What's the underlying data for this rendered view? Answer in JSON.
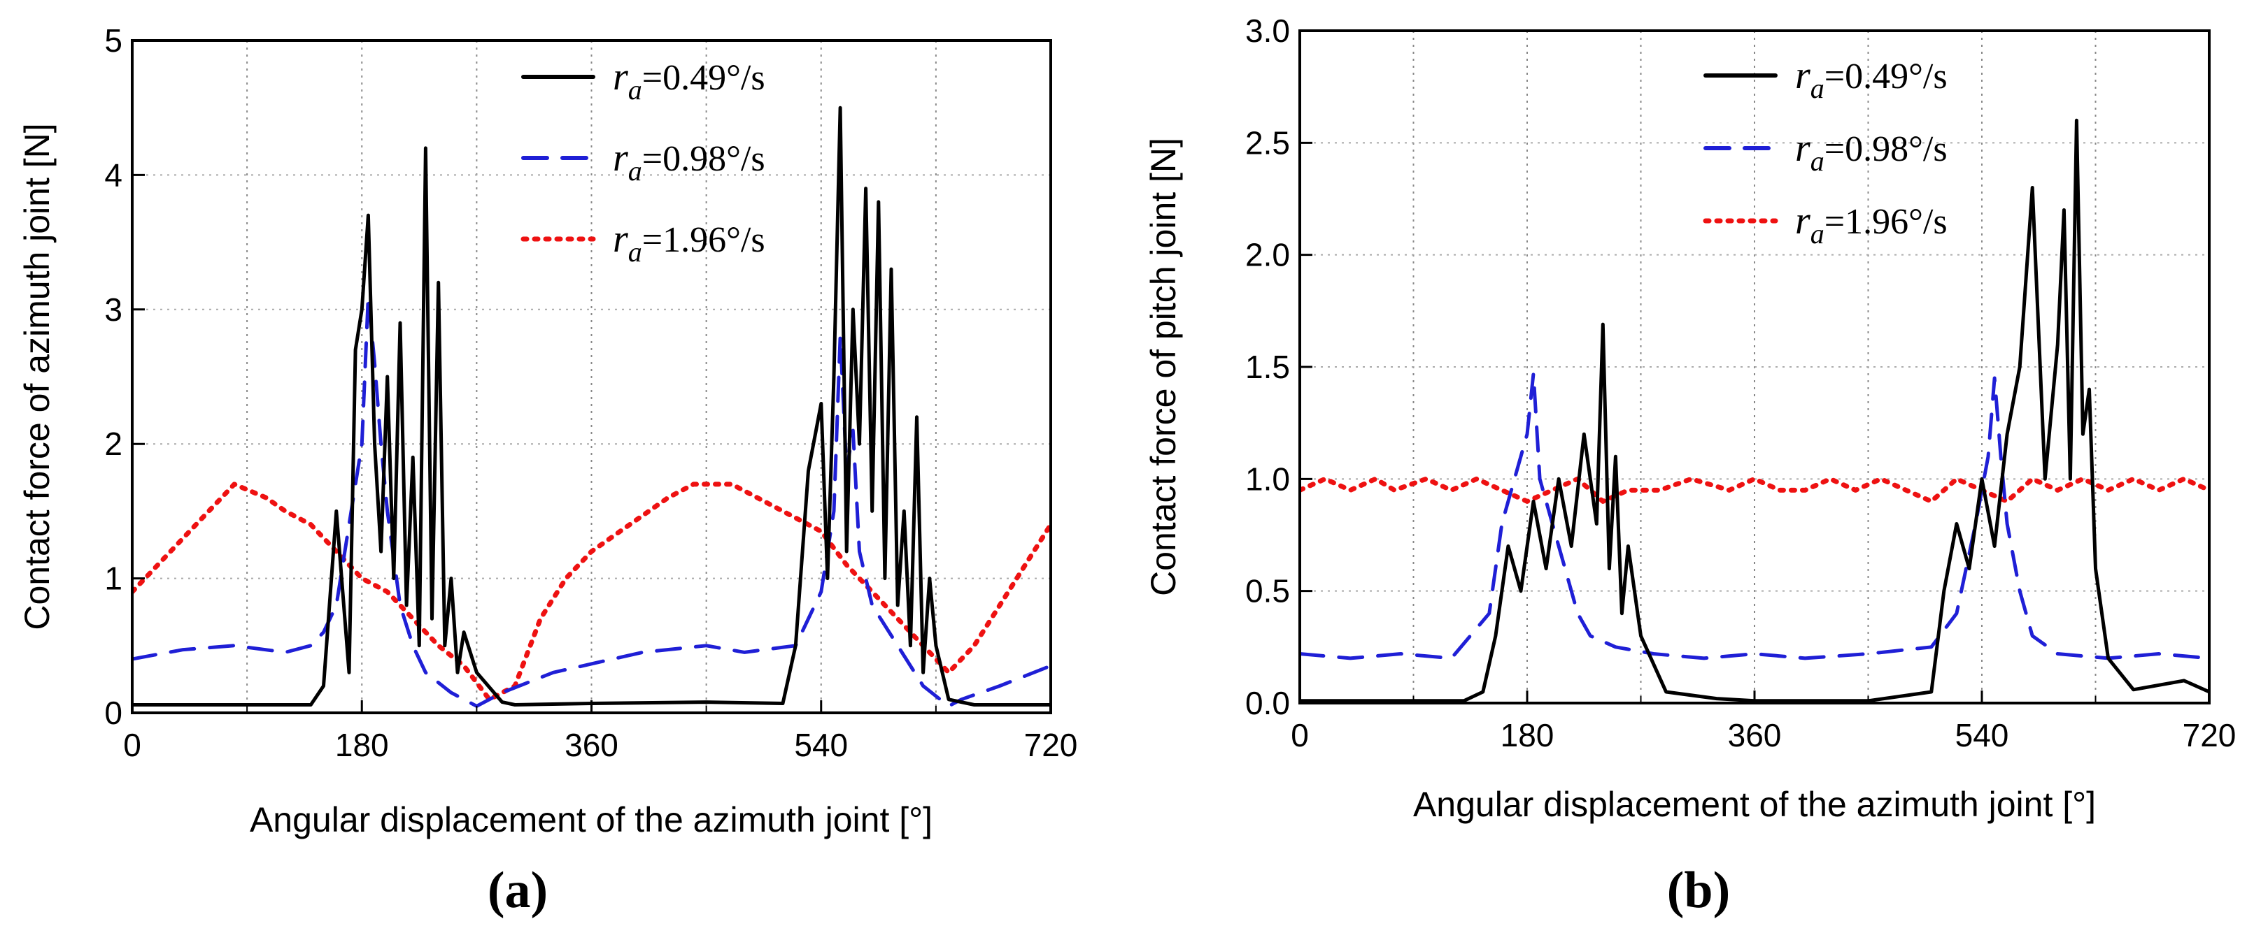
{
  "chart_data": [
    {
      "type": "line",
      "panel_label": "(a)",
      "xlabel": "Angular displacement of the azimuth joint [°]",
      "ylabel": "Contact force of azimuth joint [N]",
      "xlim": [
        0,
        720
      ],
      "ylim": [
        0,
        5
      ],
      "xticks": [
        "0",
        "180",
        "360",
        "540",
        "720"
      ],
      "yticks": [
        "0",
        "1",
        "2",
        "3",
        "4",
        "5"
      ],
      "grid": "dotted",
      "legend_position": "top-right",
      "series": [
        {
          "name": "=0.49°/s",
          "name_var": "r",
          "name_sub": "a",
          "color": "#000000",
          "style": "solid",
          "x": [
            0,
            140,
            150,
            160,
            170,
            175,
            180,
            185,
            190,
            195,
            200,
            205,
            210,
            215,
            220,
            225,
            230,
            235,
            240,
            245,
            250,
            255,
            260,
            270,
            290,
            300,
            360,
            450,
            510,
            520,
            530,
            540,
            545,
            550,
            555,
            560,
            565,
            570,
            575,
            580,
            585,
            590,
            595,
            600,
            605,
            610,
            615,
            620,
            625,
            630,
            640,
            660,
            720
          ],
          "y": [
            0.06,
            0.06,
            0.2,
            1.5,
            0.3,
            2.7,
            3.0,
            3.7,
            2.0,
            1.2,
            2.5,
            1.0,
            2.9,
            0.8,
            1.9,
            0.5,
            4.2,
            0.7,
            3.2,
            0.5,
            1.0,
            0.3,
            0.6,
            0.3,
            0.08,
            0.06,
            0.07,
            0.08,
            0.07,
            0.5,
            1.8,
            2.3,
            1.0,
            2.5,
            4.5,
            1.2,
            3.0,
            2.0,
            3.9,
            1.5,
            3.8,
            1.0,
            3.3,
            0.8,
            1.5,
            0.5,
            2.2,
            0.3,
            1.0,
            0.5,
            0.1,
            0.06,
            0.06
          ]
        },
        {
          "name": "=0.98°/s",
          "name_var": "r",
          "name_sub": "a",
          "color": "#1f1fd6",
          "style": "dashed",
          "x": [
            0,
            40,
            80,
            120,
            140,
            150,
            160,
            170,
            180,
            185,
            190,
            195,
            200,
            210,
            220,
            230,
            250,
            270,
            290,
            330,
            400,
            450,
            480,
            520,
            540,
            550,
            555,
            560,
            565,
            570,
            580,
            600,
            620,
            640,
            650,
            680,
            720
          ],
          "y": [
            0.4,
            0.47,
            0.5,
            0.45,
            0.5,
            0.6,
            0.8,
            1.4,
            2.0,
            3.1,
            2.6,
            2.0,
            1.5,
            0.8,
            0.5,
            0.3,
            0.15,
            0.05,
            0.15,
            0.3,
            0.45,
            0.5,
            0.45,
            0.5,
            0.9,
            1.5,
            2.8,
            1.8,
            2.1,
            1.2,
            0.8,
            0.5,
            0.2,
            0.05,
            0.1,
            0.2,
            0.35
          ]
        },
        {
          "name": "=1.96°/s",
          "name_var": "r",
          "name_sub": "a",
          "color": "#ee1111",
          "style": "dotted",
          "x": [
            0,
            20,
            40,
            60,
            70,
            80,
            105,
            120,
            140,
            160,
            180,
            200,
            220,
            240,
            260,
            280,
            300,
            320,
            340,
            360,
            390,
            420,
            440,
            470,
            490,
            510,
            540,
            560,
            580,
            600,
            620,
            640,
            660,
            680,
            700,
            720
          ],
          "y": [
            0.9,
            1.1,
            1.3,
            1.5,
            1.6,
            1.7,
            1.6,
            1.5,
            1.4,
            1.2,
            1.0,
            0.9,
            0.7,
            0.5,
            0.35,
            0.1,
            0.2,
            0.7,
            1.0,
            1.2,
            1.4,
            1.6,
            1.7,
            1.7,
            1.6,
            1.5,
            1.35,
            1.1,
            0.9,
            0.7,
            0.5,
            0.3,
            0.5,
            0.8,
            1.1,
            1.4
          ]
        }
      ]
    },
    {
      "type": "line",
      "panel_label": "(b)",
      "xlabel": "Angular displacement of the azimuth joint [°]",
      "ylabel": "Contact force of pitch joint [N]",
      "xlim": [
        0,
        720
      ],
      "ylim": [
        0,
        3
      ],
      "xticks": [
        "0",
        "180",
        "360",
        "540",
        "720"
      ],
      "yticks": [
        "0.0",
        "0.5",
        "1.0",
        "1.5",
        "2.0",
        "2.5",
        "3.0"
      ],
      "grid": "dotted",
      "legend_position": "top-right",
      "series": [
        {
          "name": "=0.49°/s",
          "name_var": "r",
          "name_sub": "a",
          "color": "#000000",
          "style": "solid",
          "x": [
            0,
            130,
            145,
            155,
            165,
            175,
            185,
            195,
            205,
            215,
            225,
            235,
            240,
            245,
            250,
            255,
            260,
            270,
            290,
            330,
            360,
            450,
            500,
            510,
            520,
            530,
            540,
            550,
            560,
            570,
            580,
            590,
            600,
            605,
            610,
            615,
            620,
            625,
            630,
            640,
            660,
            700,
            720
          ],
          "y": [
            0.01,
            0.01,
            0.05,
            0.3,
            0.7,
            0.5,
            0.9,
            0.6,
            1.0,
            0.7,
            1.2,
            0.8,
            1.69,
            0.6,
            1.1,
            0.4,
            0.7,
            0.3,
            0.05,
            0.02,
            0.01,
            0.01,
            0.05,
            0.5,
            0.8,
            0.6,
            1.0,
            0.7,
            1.2,
            1.5,
            2.3,
            1.0,
            1.6,
            2.2,
            1.0,
            2.6,
            1.2,
            1.4,
            0.6,
            0.2,
            0.06,
            0.1,
            0.05
          ]
        },
        {
          "name": "=0.98°/s",
          "name_var": "r",
          "name_sub": "a",
          "color": "#1f1fd6",
          "style": "dashed",
          "x": [
            0,
            40,
            80,
            120,
            150,
            160,
            170,
            180,
            185,
            190,
            200,
            210,
            220,
            230,
            250,
            280,
            320,
            360,
            400,
            450,
            500,
            520,
            535,
            545,
            550,
            555,
            560,
            570,
            580,
            600,
            640,
            680,
            720
          ],
          "y": [
            0.22,
            0.2,
            0.22,
            0.2,
            0.4,
            0.8,
            1.0,
            1.2,
            1.47,
            1.0,
            0.8,
            0.6,
            0.4,
            0.3,
            0.25,
            0.22,
            0.2,
            0.22,
            0.2,
            0.22,
            0.25,
            0.4,
            0.8,
            1.1,
            1.45,
            1.1,
            0.8,
            0.5,
            0.3,
            0.22,
            0.2,
            0.22,
            0.2
          ]
        },
        {
          "name": "=1.96°/s",
          "name_var": "r",
          "name_sub": "a",
          "color": "#ee1111",
          "style": "dotted",
          "x": [
            0,
            20,
            40,
            60,
            75,
            100,
            120,
            140,
            160,
            180,
            200,
            220,
            240,
            260,
            285,
            310,
            340,
            360,
            380,
            400,
            420,
            440,
            460,
            480,
            500,
            520,
            540,
            560,
            580,
            600,
            620,
            640,
            660,
            680,
            700,
            720
          ],
          "y": [
            0.95,
            1.0,
            0.95,
            1.0,
            0.95,
            1.0,
            0.95,
            1.0,
            0.95,
            0.9,
            0.95,
            1.0,
            0.9,
            0.95,
            0.95,
            1.0,
            0.95,
            1.0,
            0.95,
            0.95,
            1.0,
            0.95,
            1.0,
            0.95,
            0.9,
            1.0,
            0.95,
            0.9,
            1.0,
            0.95,
            1.0,
            0.95,
            1.0,
            0.95,
            1.0,
            0.95
          ]
        }
      ]
    }
  ]
}
